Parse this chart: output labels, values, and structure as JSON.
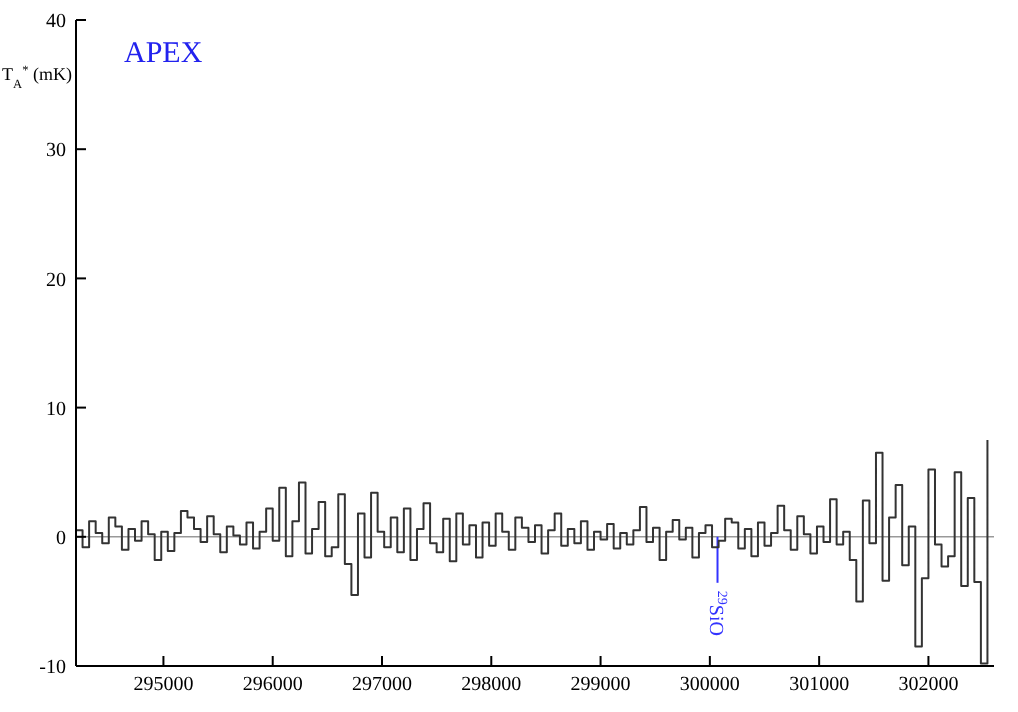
{
  "chart_data": {
    "type": "step",
    "ylabel": "T$_{A}$$^{*}$ (mK)",
    "xlim": [
      294200,
      302600
    ],
    "xticks": [
      295000,
      296000,
      297000,
      298000,
      299000,
      300000,
      301000,
      302000
    ],
    "ylim": [
      -10,
      40
    ],
    "yticks": [
      -10,
      0,
      10,
      20,
      30,
      40
    ],
    "marker": "none",
    "annotations": [
      "APEX"
    ],
    "ref_lines": [
      {
        "axis": "y",
        "value": 0,
        "color": "#999999"
      },
      {
        "axis": "x",
        "value": 300070,
        "label": "$^{29}$SiO",
        "color": "#3333ff"
      }
    ],
    "x": [
      294200,
      294260,
      294320,
      294380,
      294440,
      294500,
      294560,
      294620,
      294680,
      294740,
      294800,
      294860,
      294920,
      294980,
      295040,
      295100,
      295160,
      295220,
      295280,
      295340,
      295400,
      295460,
      295520,
      295580,
      295640,
      295700,
      295760,
      295820,
      295880,
      295940,
      296000,
      296060,
      296120,
      296180,
      296240,
      296300,
      296360,
      296420,
      296480,
      296540,
      296600,
      296660,
      296720,
      296780,
      296840,
      296900,
      296960,
      297020,
      297080,
      297140,
      297200,
      297260,
      297320,
      297380,
      297440,
      297500,
      297560,
      297620,
      297680,
      297740,
      297800,
      297860,
      297920,
      297980,
      298040,
      298100,
      298160,
      298220,
      298280,
      298340,
      298400,
      298460,
      298520,
      298580,
      298640,
      298700,
      298760,
      298820,
      298880,
      298940,
      299000,
      299060,
      299120,
      299180,
      299240,
      299300,
      299360,
      299420,
      299480,
      299540,
      299600,
      299660,
      299720,
      299780,
      299840,
      299900,
      299960,
      300020,
      300080,
      300140,
      300200,
      300260,
      300320,
      300380,
      300440,
      300500,
      300560,
      300620,
      300680,
      300740,
      300800,
      300860,
      300920,
      300980,
      301040,
      301100,
      301160,
      301220,
      301280,
      301340,
      301400,
      301460,
      301520,
      301580,
      301640,
      301700,
      301760,
      301820,
      301880,
      301940,
      302000,
      302060,
      302120,
      302180,
      302240,
      302300,
      302360,
      302420,
      302480,
      302540
    ],
    "series": [
      {
        "color": "#333333",
        "values": [
          0.5,
          -0.8,
          1.2,
          0.3,
          -0.5,
          1.5,
          0.8,
          -1,
          0.6,
          -0.3,
          1.2,
          0.2,
          -1.8,
          0.4,
          -1.1,
          0.3,
          2,
          1.5,
          0.6,
          -0.4,
          1.6,
          0.2,
          -1.2,
          0.8,
          0.1,
          -0.6,
          1.1,
          -0.9,
          0.4,
          2.2,
          -0.3,
          3.8,
          -1.5,
          1.2,
          4.2,
          -1.3,
          0.6,
          2.7,
          -1.5,
          -0.8,
          3.3,
          -2.1,
          -4.5,
          1.8,
          -1.6,
          3.4,
          0.4,
          -0.8,
          1.5,
          -1.2,
          2.2,
          -1.8,
          0.6,
          2.6,
          -0.5,
          -1.2,
          1.4,
          -1.9,
          1.8,
          -0.6,
          0.9,
          -1.6,
          1.1,
          -0.7,
          1.8,
          0.4,
          -1,
          1.5,
          0.7,
          -0.4,
          0.9,
          -1.3,
          0.5,
          1.8,
          -0.7,
          0.6,
          -0.5,
          1.2,
          -1,
          0.4,
          -0.2,
          1,
          -0.9,
          0.3,
          -0.6,
          0.5,
          2.3,
          -0.4,
          0.7,
          -1.8,
          0.4,
          1.3,
          -0.2,
          0.7,
          -1.6,
          0.3,
          0.9,
          -0.8,
          -0.3,
          1.4,
          1.1,
          -0.9,
          0.6,
          -1.5,
          1.1,
          -0.7,
          0.3,
          2.4,
          0.5,
          -1,
          1.6,
          0.2,
          -1.3,
          0.8,
          -0.4,
          2.9,
          -0.6,
          0.4,
          -1.8,
          -5,
          2.8,
          -0.5,
          6.5,
          -3.4,
          1.5,
          4,
          -2.2,
          0.8,
          -8.5,
          -3.2,
          5.2,
          -0.6,
          -2.3,
          -1.5,
          5,
          -3.8,
          3,
          -3.5,
          -9.8,
          7.5
        ]
      }
    ]
  }
}
